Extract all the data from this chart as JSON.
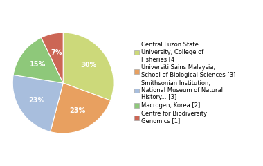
{
  "slices": [
    {
      "label": "Central Luzon State\nUniversity, College of\nFisheries [4]",
      "value": 30,
      "color": "#ccd97a"
    },
    {
      "label": "Universiti Sains Malaysia,\nSchool of Biological Sciences [3]",
      "value": 23,
      "color": "#e8a060"
    },
    {
      "label": "Smithsonian Institution,\nNational Museum of Natural\nHistory... [3]",
      "value": 23,
      "color": "#a8bedd"
    },
    {
      "label": "Macrogen, Korea [2]",
      "value": 15,
      "color": "#8ec87a"
    },
    {
      "label": "Centre for Biodiversity\nGenomics [1]",
      "value": 7,
      "color": "#cc6655"
    }
  ],
  "pct_labels": [
    "30%",
    "23%",
    "23%",
    "15%",
    "7%"
  ],
  "label_color": "white",
  "label_fontsize": 7,
  "legend_fontsize": 6,
  "bg_color": "#ffffff"
}
